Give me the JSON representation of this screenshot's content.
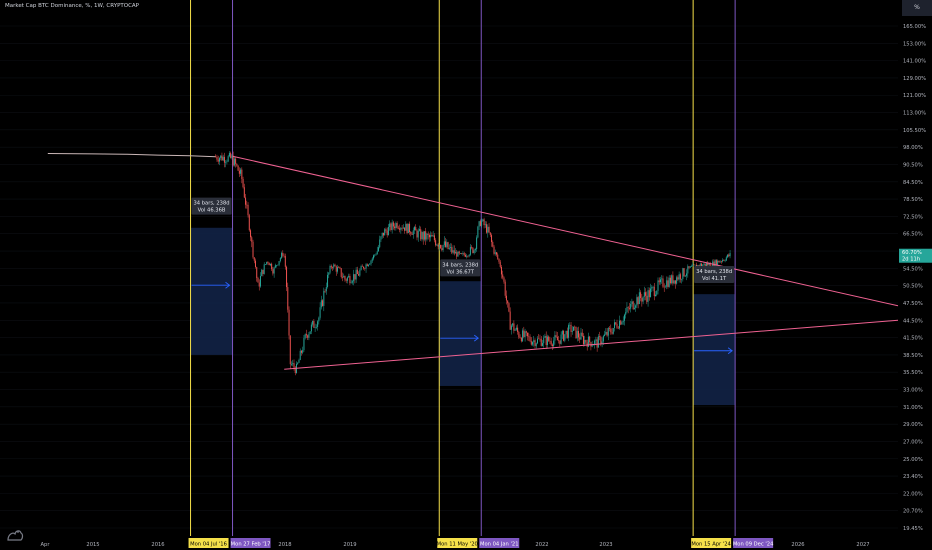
{
  "header": {
    "title": "Market Cap BTC Dominance, %, 1W, CRYPTOCAP"
  },
  "scale_button": "%",
  "colors": {
    "background": "#000000",
    "candle_up": "#26a69a",
    "candle_down": "#ef5350",
    "trendline": "#f06292",
    "yellow_line": "#f5e04a",
    "purple_line": "#7e57c2",
    "range_box": "#13244a",
    "range_arrow": "#2962ff",
    "price_badge": "#26a69a"
  },
  "y_axis": {
    "ticks": [
      "165.00%",
      "153.00%",
      "141.00%",
      "129.00%",
      "121.00%",
      "113.00%",
      "105.50%",
      "98.00%",
      "90.50%",
      "84.50%",
      "78.50%",
      "72.50%",
      "66.50%",
      "62.50%",
      "54.50%",
      "50.50%",
      "47.50%",
      "44.50%",
      "41.50%",
      "38.50%",
      "35.50%",
      "33.00%",
      "31.00%",
      "29.00%",
      "27.00%",
      "25.00%",
      "23.40%",
      "22.00%",
      "20.70%",
      "19.45%"
    ],
    "current_value": "60.70%",
    "countdown": "2d 11h"
  },
  "x_axis": {
    "ticks": [
      "Apr",
      "2015",
      "2016",
      "2018",
      "2019",
      "2022",
      "2023",
      "2026",
      "2027"
    ],
    "highlighted": [
      {
        "label": "Mon 04 Jul '16",
        "style": "yellow"
      },
      {
        "label": "Mon 27 Feb '17",
        "style": "purple"
      },
      {
        "label": "Mon 11 May '20",
        "style": "yellow"
      },
      {
        "label": "Mon 04 Jan '21",
        "style": "purple"
      },
      {
        "label": "Mon 15 Apr '24",
        "style": "yellow"
      },
      {
        "label": "Mon 09 Dec '24",
        "style": "purple"
      }
    ]
  },
  "measures": [
    {
      "bars": "34 bars, 238d",
      "vol": "Vol 46.36B"
    },
    {
      "bars": "34 bars, 238d",
      "vol": "Vol 36.67T"
    },
    {
      "bars": "34 bars, 238d",
      "vol": "Vol 41.1T"
    }
  ],
  "chart_data": {
    "type": "line",
    "title": "Market Cap BTC Dominance, %, 1W, CRYPTOCAP",
    "x_unit": "year",
    "y_unit": "%",
    "y_scale": "log",
    "ylim": [
      19.45,
      165
    ],
    "series": [
      {
        "x": [
          2014.3,
          2015.0,
          2015.5,
          2016.0,
          2016.5,
          2016.9,
          2017.15,
          2017.3,
          2017.45,
          2017.55,
          2017.7,
          2017.8,
          2017.95,
          2018.05,
          2018.15,
          2018.3,
          2018.5,
          2018.7,
          2018.9,
          2019.1,
          2019.3,
          2019.5,
          2019.7,
          2019.9,
          2020.1,
          2020.3,
          2020.5,
          2020.7,
          2020.9,
          2021.0,
          2021.1,
          2021.25,
          2021.45,
          2021.6,
          2021.8,
          2022.0,
          2022.2,
          2022.4,
          2022.6,
          2022.8,
          2023.0,
          2023.2,
          2023.4,
          2023.6,
          2023.8,
          2024.0,
          2024.2,
          2024.4,
          2024.6,
          2024.75,
          2024.87
        ],
        "y": [
          95.2,
          95.0,
          94.9,
          94.5,
          94.2,
          93.8,
          93.0,
          86.0,
          65.0,
          50.0,
          58.0,
          54.0,
          62.0,
          37.0,
          36.0,
          42.0,
          45.0,
          56.0,
          52.0,
          53.0,
          58.0,
          67.0,
          70.0,
          68.0,
          66.0,
          65.0,
          63.0,
          60.0,
          63.0,
          71.0,
          68.0,
          60.0,
          44.0,
          42.0,
          41.0,
          41.0,
          41.0,
          43.0,
          41.0,
          40.5,
          42.5,
          45.0,
          48.0,
          49.0,
          51.0,
          52.0,
          54.0,
          56.0,
          56.5,
          58.5,
          60.7
        ]
      }
    ]
  }
}
